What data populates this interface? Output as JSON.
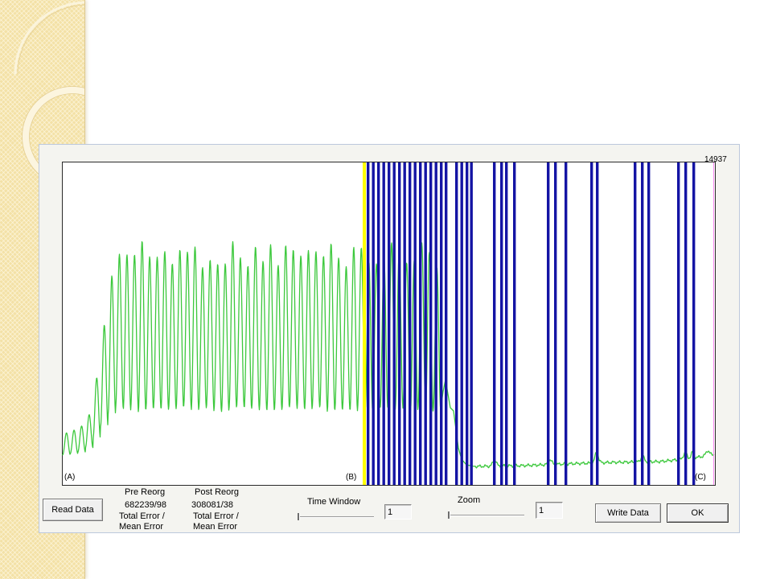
{
  "dialog": {
    "plot": {
      "max_label": "14937",
      "marker_a": "(A)",
      "marker_b": "(B)",
      "marker_c": "(C)",
      "colors": {
        "trace": "#3cc83c",
        "event_marker": "#1414a4",
        "cursor": "#ffff00",
        "end_marker": "#ff8cf5"
      }
    },
    "read_data_label": "Read Data",
    "stats": {
      "pre_reorg": {
        "heading": "Pre Reorg",
        "value": "682239/98",
        "caption_line1": "Total Error /",
        "caption_line2": "Mean Error"
      },
      "post_reorg": {
        "heading": "Post Reorg",
        "value": "308081/38",
        "caption_line1": "Total Error /",
        "caption_line2": "Mean Error"
      }
    },
    "time_window": {
      "label": "Time Window",
      "value": "1",
      "slider_level": 0
    },
    "zoom": {
      "label": "Zoom",
      "value": "1",
      "slider_level": 0
    },
    "write_data_label": "Write Data",
    "ok_label": "OK"
  }
}
